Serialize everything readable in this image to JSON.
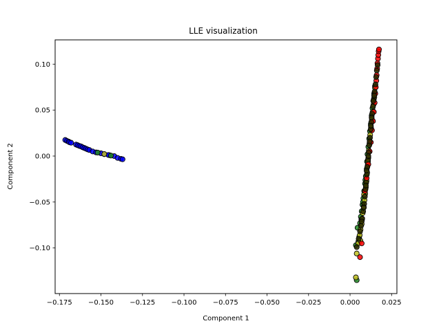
{
  "chart_data": {
    "type": "scatter",
    "title": "LLE visualization",
    "xlabel": "Component 1",
    "ylabel": "Component 2",
    "xlim": [
      -0.1776,
      0.0282
    ],
    "ylim": [
      -0.1496,
      0.1264
    ],
    "xticks": [
      -0.175,
      -0.15,
      -0.125,
      -0.1,
      -0.075,
      -0.05,
      -0.025,
      0.0,
      0.025
    ],
    "xtick_labels": [
      "−0.175",
      "−0.150",
      "−0.125",
      "−0.100",
      "−0.075",
      "−0.050",
      "−0.025",
      "0.000",
      "0.025"
    ],
    "yticks": [
      -0.1,
      -0.05,
      0.0,
      0.05,
      0.1
    ],
    "ytick_labels": [
      "−0.10",
      "−0.05",
      "0.00",
      "0.05",
      "0.10"
    ],
    "grid": false,
    "legend": "none",
    "marker_edge_color": "#000000",
    "series": [
      {
        "color": "#0000ff",
        "points": [
          [
            -0.1715,
            0.0175
          ],
          [
            -0.1705,
            0.0165
          ],
          [
            -0.1695,
            0.0158
          ],
          [
            -0.169,
            0.015
          ],
          [
            -0.168,
            0.0145
          ],
          [
            -0.165,
            0.0125
          ],
          [
            -0.164,
            0.0118
          ],
          [
            -0.163,
            0.011
          ],
          [
            -0.162,
            0.0105
          ],
          [
            -0.161,
            0.0095
          ],
          [
            -0.16,
            0.0088
          ],
          [
            -0.159,
            0.008
          ],
          [
            -0.158,
            0.0072
          ],
          [
            -0.157,
            0.0066
          ],
          [
            -0.155,
            0.005
          ],
          [
            -0.153,
            0.004
          ],
          [
            -0.15,
            0.003
          ],
          [
            -0.148,
            0.002
          ],
          [
            -0.145,
            0.001
          ],
          [
            -0.142,
            0.0
          ],
          [
            -0.14,
            -0.002
          ],
          [
            -0.138,
            -0.003
          ],
          [
            -0.137,
            -0.0035
          ],
          [
            -0.1455,
            0.0012
          ]
        ]
      },
      {
        "color": "#228b22",
        "points": [
          [
            -0.144,
            0.0005
          ],
          [
            -0.152,
            0.0038
          ],
          [
            0.004,
            -0.135
          ],
          [
            0.0035,
            -0.097
          ],
          [
            0.005,
            -0.093
          ],
          [
            0.0055,
            -0.088
          ],
          [
            0.0045,
            -0.078
          ],
          [
            0.006,
            -0.073
          ],
          [
            0.0065,
            -0.066
          ],
          [
            0.007,
            -0.06
          ],
          [
            0.0075,
            -0.053
          ],
          [
            0.008,
            -0.046
          ],
          [
            0.0085,
            -0.038
          ],
          [
            0.009,
            -0.03
          ],
          [
            0.0095,
            -0.022
          ],
          [
            0.01,
            -0.014
          ],
          [
            0.0102,
            -0.006
          ],
          [
            0.0105,
            0.002
          ],
          [
            0.011,
            0.01
          ],
          [
            0.0115,
            0.019
          ],
          [
            0.012,
            0.027
          ],
          [
            0.0125,
            0.035
          ],
          [
            0.013,
            0.044
          ],
          [
            0.0135,
            0.052
          ],
          [
            0.014,
            0.06
          ],
          [
            0.0145,
            0.068
          ],
          [
            0.015,
            0.076
          ],
          [
            0.0068,
            -0.069
          ],
          [
            0.0078,
            -0.05
          ],
          [
            0.0092,
            -0.026
          ]
        ]
      },
      {
        "color": "#bfbf1f",
        "points": [
          [
            -0.148,
            0.0022
          ],
          [
            0.0035,
            -0.132
          ],
          [
            0.004,
            -0.106
          ],
          [
            0.005,
            -0.095
          ],
          [
            0.0058,
            -0.086
          ],
          [
            0.0063,
            -0.08
          ],
          [
            0.007,
            -0.074
          ],
          [
            0.0072,
            -0.069
          ],
          [
            0.0076,
            -0.062
          ],
          [
            0.0082,
            -0.055
          ],
          [
            0.0087,
            -0.048
          ],
          [
            0.0091,
            -0.041
          ],
          [
            0.0095,
            -0.034
          ],
          [
            0.0099,
            -0.027
          ],
          [
            0.0103,
            -0.018
          ],
          [
            0.0106,
            -0.01
          ],
          [
            0.011,
            -0.002
          ],
          [
            0.0113,
            0.006
          ],
          [
            0.0117,
            0.014
          ],
          [
            0.0121,
            0.023
          ],
          [
            0.0126,
            0.031
          ],
          [
            0.0131,
            0.04
          ],
          [
            0.0136,
            0.048
          ],
          [
            0.0141,
            0.056
          ],
          [
            0.0146,
            0.064
          ],
          [
            0.015,
            0.074
          ],
          [
            0.0062,
            -0.092
          ],
          [
            0.0084,
            -0.042
          ],
          [
            0.0108,
            -0.006
          ]
        ]
      },
      {
        "color": "#ff0000",
        "points": [
          [
            0.006,
            -0.11
          ],
          [
            0.007,
            -0.095
          ],
          [
            0.009,
            -0.038
          ],
          [
            0.01,
            -0.024
          ],
          [
            0.011,
            -0.009
          ],
          [
            0.0118,
            0.005
          ],
          [
            0.0125,
            0.015
          ],
          [
            0.0132,
            0.028
          ],
          [
            0.0138,
            0.038
          ],
          [
            0.0143,
            0.048
          ],
          [
            0.0148,
            0.058
          ],
          [
            0.0152,
            0.068
          ],
          [
            0.0155,
            0.075
          ],
          [
            0.0158,
            0.082
          ],
          [
            0.016,
            0.088
          ],
          [
            0.0163,
            0.095
          ],
          [
            0.0165,
            0.101
          ],
          [
            0.0168,
            0.106
          ],
          [
            0.017,
            0.11
          ],
          [
            0.0172,
            0.114
          ],
          [
            0.0174,
            0.116
          ]
        ]
      },
      {
        "color": "#2a2a00",
        "points": [
          [
            0.004,
            -0.099
          ],
          [
            0.0052,
            -0.09
          ],
          [
            0.006,
            -0.082
          ],
          [
            0.0066,
            -0.076
          ],
          [
            0.0073,
            -0.068
          ],
          [
            0.0079,
            -0.06
          ],
          [
            0.0085,
            -0.052
          ],
          [
            0.0089,
            -0.044
          ],
          [
            0.0093,
            -0.036
          ],
          [
            0.0097,
            -0.029
          ],
          [
            0.0101,
            -0.02
          ],
          [
            0.0104,
            -0.012
          ],
          [
            0.0108,
            -0.004
          ],
          [
            0.0112,
            0.004
          ],
          [
            0.0116,
            0.012
          ],
          [
            0.012,
            0.02
          ],
          [
            0.0124,
            0.029
          ],
          [
            0.0128,
            0.037
          ],
          [
            0.0133,
            0.046
          ],
          [
            0.0138,
            0.054
          ],
          [
            0.0143,
            0.062
          ],
          [
            0.0148,
            0.07
          ],
          [
            0.0153,
            0.078
          ],
          [
            0.0157,
            0.086
          ],
          [
            0.0161,
            0.093
          ],
          [
            0.0166,
            0.099
          ],
          [
            0.014,
            0.06
          ],
          [
            0.0125,
            0.033
          ],
          [
            0.01,
            -0.016
          ],
          [
            0.0083,
            -0.056
          ],
          [
            0.007,
            -0.071
          ],
          [
            0.0118,
            0.016
          ],
          [
            0.013,
            0.042
          ],
          [
            0.0145,
            0.066
          ],
          [
            0.0095,
            -0.032
          ],
          [
            0.011,
            0.0
          ]
        ]
      }
    ]
  }
}
